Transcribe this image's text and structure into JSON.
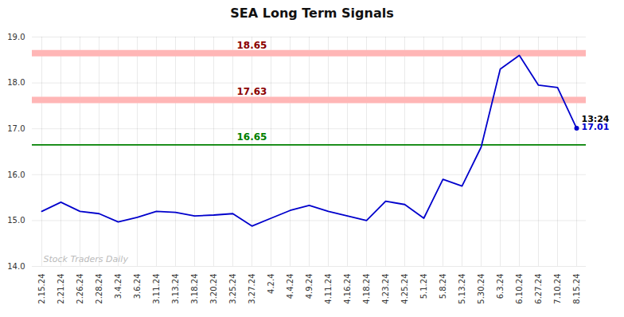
{
  "chart_data": {
    "type": "line",
    "title": "SEA Long Term Signals",
    "categories": [
      "2.15.24",
      "2.21.24",
      "2.26.24",
      "2.28.24",
      "3.4.24",
      "3.6.24",
      "3.11.24",
      "3.13.24",
      "3.18.24",
      "3.20.24",
      "3.25.24",
      "3.27.24",
      "4.2.4",
      "4.4.24",
      "4.9.24",
      "4.11.24",
      "4.16.24",
      "4.18.24",
      "4.23.24",
      "4.25.24",
      "5.1.24",
      "5.8.24",
      "5.13.24",
      "5.30.24",
      "6.3.24",
      "6.10.24",
      "6.27.24",
      "7.10.24",
      "8.15.24"
    ],
    "values": [
      15.2,
      15.4,
      15.2,
      15.15,
      14.97,
      15.07,
      15.2,
      15.18,
      15.1,
      15.12,
      15.15,
      14.88,
      15.05,
      15.22,
      15.33,
      15.2,
      15.1,
      15.0,
      15.42,
      15.35,
      15.05,
      15.9,
      15.75,
      16.6,
      18.3,
      18.6,
      17.95,
      17.9,
      17.01
    ],
    "color": "#0000cc",
    "ylim": [
      14,
      19
    ],
    "yticks": [
      14,
      15,
      16,
      17,
      18,
      19
    ],
    "grid": true,
    "hlines": [
      {
        "value": 18.65,
        "color": "#ffb6b6",
        "line_style": "band",
        "label": "18.65",
        "label_color": "#8b0000"
      },
      {
        "value": 17.63,
        "color": "#ffb6b6",
        "line_style": "band",
        "label": "17.63",
        "label_color": "#8b0000"
      },
      {
        "value": 16.65,
        "color": "#008000",
        "line_style": "solid",
        "label": "16.65",
        "label_color": "#008000"
      }
    ],
    "annotations": [
      {
        "text": "13:24",
        "color": "#000000"
      },
      {
        "text": "17.01",
        "color": "#0000cc"
      }
    ],
    "watermark": {
      "text": "Stock Traders Daily",
      "color": "#bbbbbb"
    }
  }
}
